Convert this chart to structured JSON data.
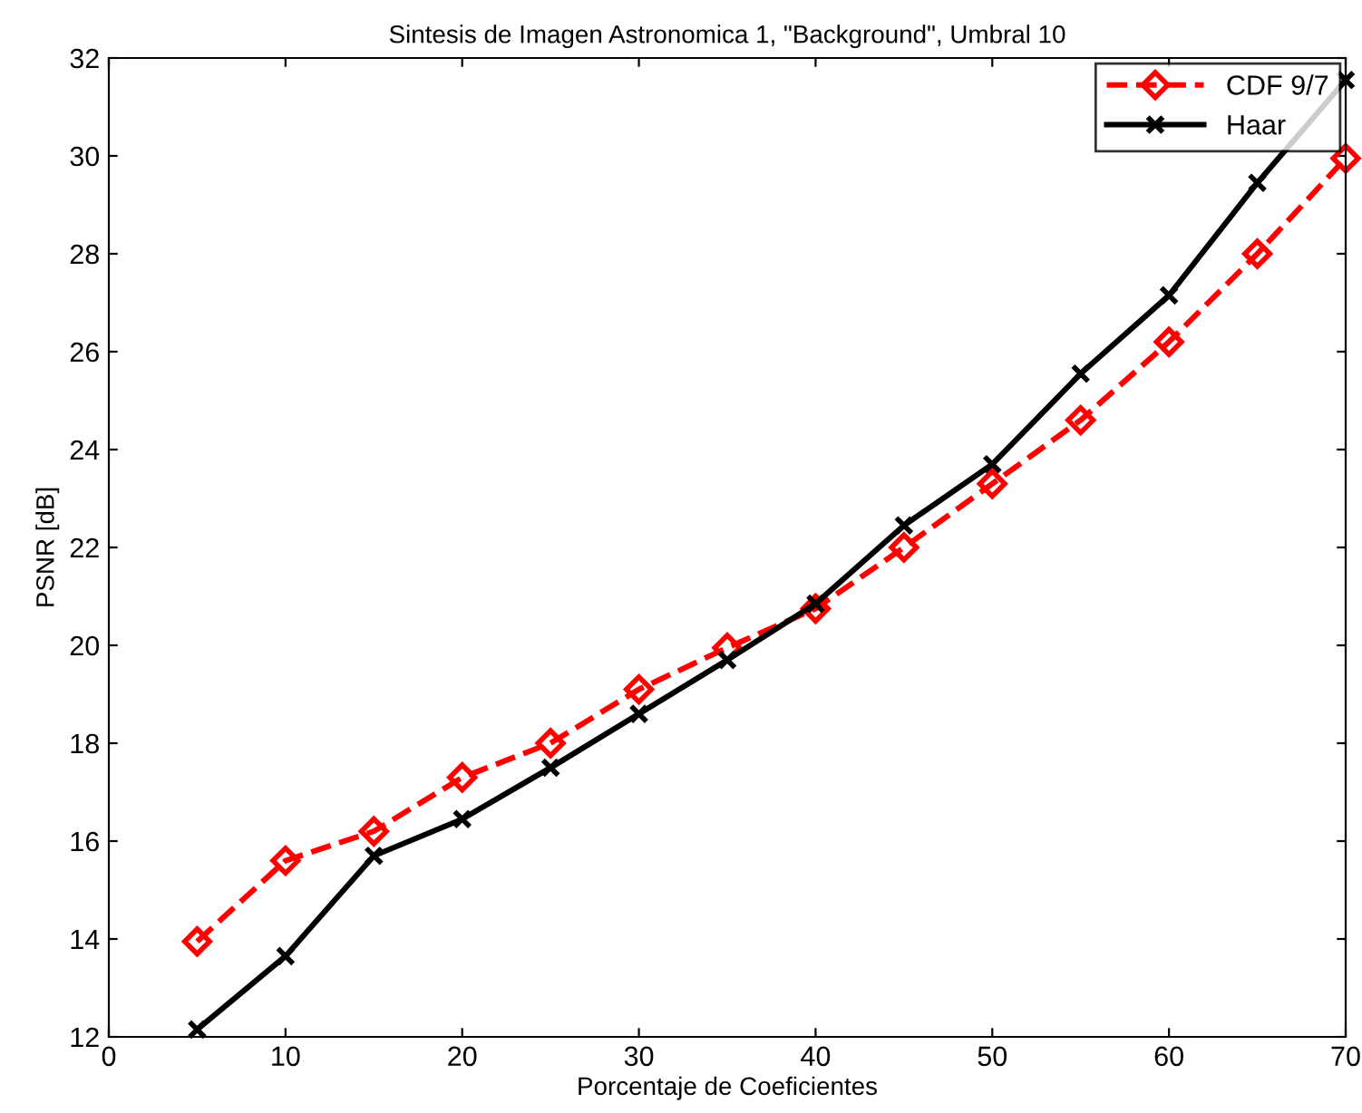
{
  "chart_data": {
    "type": "line",
    "title": "Sintesis de Imagen Astronomica 1, \"Background\", Umbral 10",
    "xlabel": "Porcentaje de Coeficientes",
    "ylabel": "PSNR [dB]",
    "x": [
      5,
      10,
      15,
      20,
      25,
      30,
      35,
      40,
      45,
      50,
      55,
      60,
      65,
      70
    ],
    "series": [
      {
        "name": "CDF 9/7",
        "color": "#ff0000",
        "marker": "diamond",
        "line_style": "dashed",
        "values": [
          13.95,
          15.6,
          16.2,
          17.3,
          18.0,
          19.1,
          19.95,
          20.75,
          22.0,
          23.3,
          24.6,
          26.2,
          28.0,
          29.95
        ]
      },
      {
        "name": "Haar",
        "color": "#000000",
        "marker": "cross",
        "line_style": "solid",
        "values": [
          12.15,
          13.65,
          15.7,
          16.45,
          17.5,
          18.6,
          19.7,
          20.85,
          22.45,
          23.7,
          25.55,
          27.15,
          29.45,
          31.55
        ]
      }
    ],
    "xlim": [
      0,
      70
    ],
    "xticks": [
      0,
      10,
      20,
      30,
      40,
      50,
      60,
      70
    ],
    "ylim": [
      12,
      32
    ],
    "yticks": [
      12,
      14,
      16,
      18,
      20,
      22,
      24,
      26,
      28,
      30,
      32
    ],
    "grid": false,
    "legend": "top right"
  }
}
